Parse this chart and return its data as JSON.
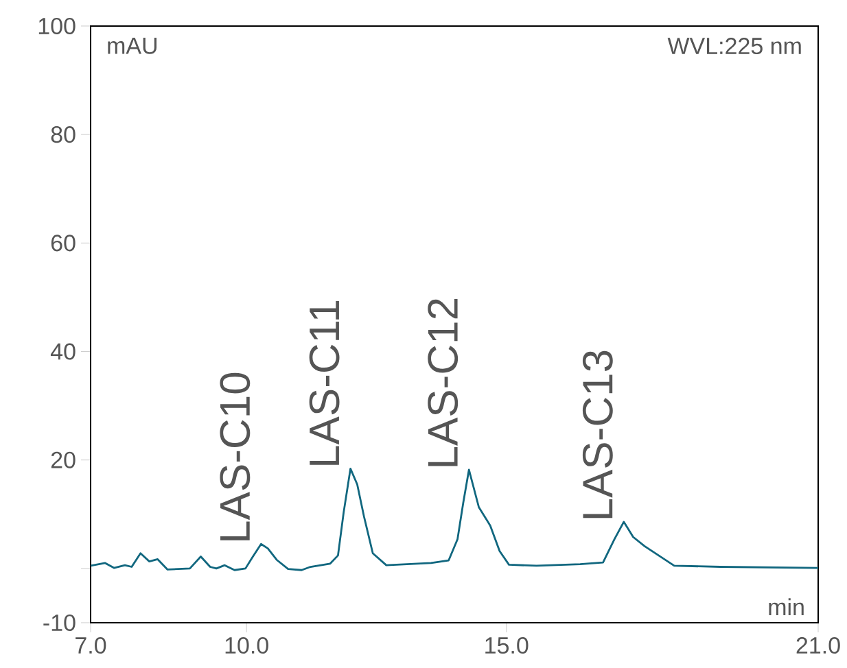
{
  "chart_data": {
    "type": "line",
    "xlabel": "min",
    "ylabel": "mAU",
    "annotations": [
      "WVL:225 nm",
      {
        "text": "LAS-C10",
        "x": 10.28,
        "y": 4.5
      },
      {
        "text": "LAS-C11",
        "x": 12.0,
        "y": 18.4
      },
      {
        "text": "LAS-C12",
        "x": 14.28,
        "y": 18.2
      },
      {
        "text": "LAS-C13",
        "x": 17.26,
        "y": 8.6
      }
    ],
    "series": [
      {
        "color": "#11677f",
        "x": [
          7.0,
          7.28,
          7.45,
          7.66,
          7.79,
          7.96,
          8.13,
          8.29,
          8.48,
          8.91,
          9.12,
          9.3,
          9.42,
          9.58,
          9.77,
          9.98,
          10.11,
          10.28,
          10.41,
          10.58,
          10.8,
          11.06,
          11.23,
          11.61,
          11.76,
          11.87,
          12.0,
          12.13,
          12.26,
          12.43,
          12.69,
          13.55,
          13.89,
          14.06,
          14.17,
          14.28,
          14.47,
          14.69,
          14.87,
          15.05,
          15.58,
          16.42,
          16.86,
          17.08,
          17.26,
          17.44,
          17.66,
          17.93,
          18.23,
          19.12,
          21.0
        ],
        "values": [
          0.5,
          1.0,
          0.1,
          0.6,
          0.3,
          2.8,
          1.3,
          1.7,
          -0.2,
          0.0,
          2.2,
          0.3,
          0.0,
          0.6,
          -0.3,
          0.0,
          2.0,
          4.5,
          3.7,
          1.6,
          -0.1,
          -0.3,
          0.3,
          0.9,
          2.4,
          10.4,
          18.4,
          15.5,
          9.6,
          2.8,
          0.6,
          1.0,
          1.5,
          5.4,
          12.1,
          18.2,
          11.3,
          7.9,
          3.2,
          0.7,
          0.5,
          0.8,
          1.1,
          5.4,
          8.6,
          5.8,
          4.1,
          2.4,
          0.5,
          0.3,
          0.1
        ]
      }
    ],
    "xlim": [
      7.0,
      21.0
    ],
    "ylim": [
      -10,
      100
    ],
    "xticks": [
      {
        "value": 7,
        "label": "7.0"
      },
      {
        "value": 10,
        "label": "10.0"
      },
      {
        "value": 15,
        "label": "15.0"
      },
      {
        "value": 21,
        "label": "21.0"
      }
    ],
    "yticks": [
      -10,
      {
        "value": 0,
        "label": null
      },
      20,
      40,
      60,
      80,
      100
    ],
    "marker": "none",
    "line_style": "solid"
  }
}
